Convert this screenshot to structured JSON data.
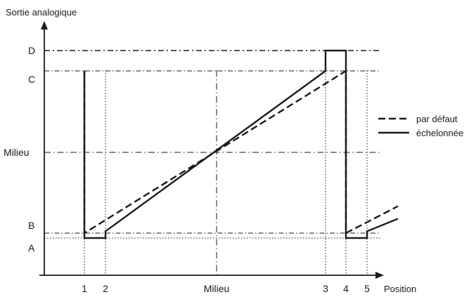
{
  "chart_data": {
    "type": "line",
    "ylabel": "Sortie analogique",
    "xlabel": "Position",
    "x_ticks": [
      {
        "label": "1",
        "value": 1
      },
      {
        "label": "2",
        "value": 2
      },
      {
        "label": "Milieu",
        "value": 3
      },
      {
        "label": "3",
        "value": 4
      },
      {
        "label": "4",
        "value": 5
      },
      {
        "label": "5",
        "value": 6
      }
    ],
    "y_levels": [
      {
        "label": "A",
        "value": 0.02
      },
      {
        "label": "B",
        "value": 0.05
      },
      {
        "label": "Milieu",
        "value": 0.5
      },
      {
        "label": "C",
        "value": 0.95
      },
      {
        "label": "D",
        "value": 1.05
      }
    ],
    "series": [
      {
        "name": "par défaut",
        "style": "dashed",
        "points": [
          [
            1,
            0.95
          ],
          [
            1,
            0.05
          ],
          [
            5,
            0.95
          ],
          [
            5,
            0.05
          ],
          [
            6.55,
            0.2
          ]
        ]
      },
      {
        "name": "échelonnée",
        "style": "solid",
        "points": [
          [
            1,
            0.95
          ],
          [
            1,
            0.02
          ],
          [
            2,
            0.02
          ],
          [
            2,
            0.06
          ],
          [
            4,
            0.95
          ],
          [
            4,
            1.05
          ],
          [
            5,
            1.05
          ],
          [
            5,
            0.02
          ],
          [
            6,
            0.02
          ],
          [
            6,
            0.06
          ],
          [
            6.55,
            0.13
          ]
        ]
      }
    ],
    "legend_position": "right",
    "grid": false
  }
}
